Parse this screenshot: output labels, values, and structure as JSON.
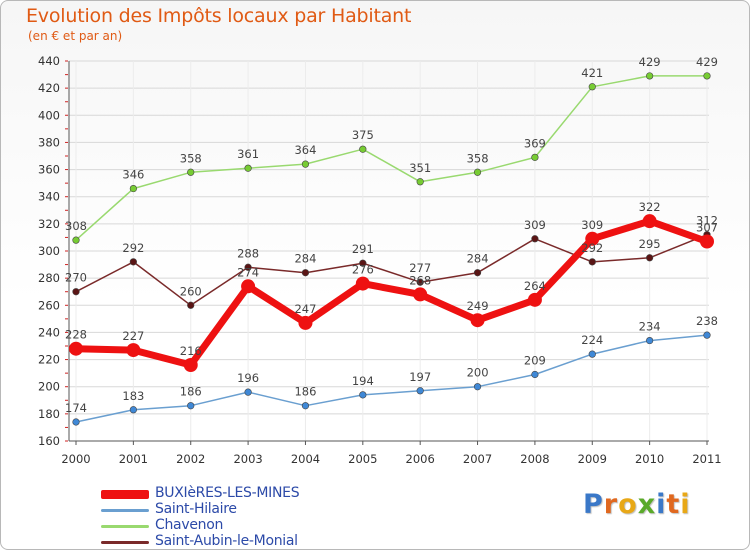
{
  "title": "Evolution des Impôts locaux par Habitant",
  "subtitle": "(en € et par an)",
  "brand": "Proxiti",
  "colors": {
    "title": "#e05a14",
    "axis": "#333333",
    "grid": "#d8d8d8",
    "legend_text": "#2c4aa8"
  },
  "chart_data": {
    "type": "line",
    "x": [
      "2000",
      "2001",
      "2002",
      "2003",
      "2004",
      "2005",
      "2006",
      "2007",
      "2008",
      "2009",
      "2010",
      "2011"
    ],
    "ylim": [
      160,
      440
    ],
    "yticks": [
      160,
      180,
      200,
      220,
      240,
      260,
      280,
      300,
      320,
      340,
      360,
      380,
      400,
      420,
      440
    ],
    "grid": true,
    "legend_position": "bottom-left",
    "series": [
      {
        "name": "BUXIèRES-LES-MINES",
        "color": "#ee1111",
        "marker_color": "#ee1111",
        "bold": true,
        "values": [
          228,
          227,
          216,
          274,
          247,
          276,
          268,
          249,
          264,
          309,
          322,
          307
        ],
        "labels": [
          "228",
          "227",
          "216",
          "274",
          "247",
          "276",
          "268",
          "249",
          "264",
          "309",
          "322",
          "307"
        ]
      },
      {
        "name": "Saint-Hilaire",
        "color": "#6a9fd0",
        "marker_color": "#3f88d6",
        "bold": false,
        "values": [
          174,
          183,
          186,
          196,
          186,
          194,
          197,
          200,
          209,
          224,
          234,
          238
        ],
        "labels": [
          "174",
          "183",
          "186",
          "196",
          "186",
          "194",
          "197",
          "200",
          "209",
          "224",
          "234",
          "238"
        ]
      },
      {
        "name": "Chavenon",
        "color": "#99d96f",
        "marker_color": "#77cc33",
        "bold": false,
        "values": [
          308,
          346,
          358,
          361,
          364,
          375,
          351,
          358,
          369,
          421,
          429,
          429
        ],
        "labels": [
          "308",
          "346",
          "358",
          "361",
          "364",
          "375",
          "351",
          "358",
          "369",
          "421",
          "429",
          "429"
        ]
      },
      {
        "name": "Saint-Aubin-le-Monial",
        "color": "#7a2a2a",
        "marker_color": "#5a1515",
        "bold": false,
        "values": [
          270,
          292,
          260,
          288,
          284,
          291,
          277,
          284,
          309,
          292,
          295,
          312
        ],
        "labels": [
          "270",
          "292",
          "260",
          "288",
          "284",
          "291",
          "277",
          "284",
          "309",
          "292",
          "295",
          "312"
        ]
      }
    ]
  }
}
